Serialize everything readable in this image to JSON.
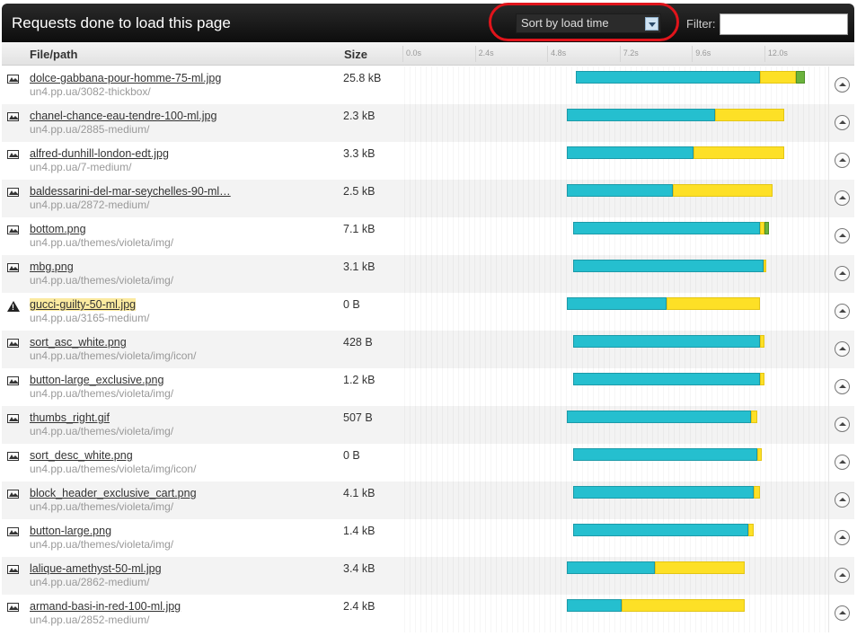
{
  "header": {
    "title": "Requests done to load this page",
    "sort_label": "Sort by load time",
    "filter_label": "Filter:",
    "filter_value": ""
  },
  "columns": {
    "file": "File/path",
    "size": "Size",
    "ticks": [
      "0.0s",
      "2.4s",
      "4.8s",
      "7.2s",
      "9.6s",
      "12.0s"
    ]
  },
  "timeline_max_seconds": 14.0,
  "colors": {
    "wait": "#25bfcf",
    "receive": "#fde026",
    "extra": "#6bb33c",
    "error_highlight": "#fbeaa0"
  },
  "rows": [
    {
      "name": "dolce-gabbana-pour-homme-75-ml.jpg",
      "path": "un4.pp.ua/3082-thickbox/",
      "size": "25.8 kB",
      "icon": "image-icon",
      "error": false,
      "segments": [
        {
          "t": "c",
          "s": 5.7,
          "e": 11.8
        },
        {
          "t": "y",
          "s": 11.8,
          "e": 13.0
        },
        {
          "t": "g",
          "s": 13.0,
          "e": 13.3
        }
      ]
    },
    {
      "name": "chanel-chance-eau-tendre-100-ml.jpg",
      "path": "un4.pp.ua/2885-medium/",
      "size": "2.3 kB",
      "icon": "image-icon",
      "error": false,
      "segments": [
        {
          "t": "c",
          "s": 5.4,
          "e": 10.3
        },
        {
          "t": "y",
          "s": 10.3,
          "e": 12.6
        }
      ]
    },
    {
      "name": "alfred-dunhill-london-edt.jpg",
      "path": "un4.pp.ua/7-medium/",
      "size": "3.3 kB",
      "icon": "image-icon",
      "error": false,
      "segments": [
        {
          "t": "c",
          "s": 5.4,
          "e": 9.6
        },
        {
          "t": "y",
          "s": 9.6,
          "e": 12.6
        }
      ]
    },
    {
      "name": "baldessarini-del-mar-seychelles-90-ml…",
      "path": "un4.pp.ua/2872-medium/",
      "size": "2.5 kB",
      "icon": "image-icon",
      "error": false,
      "segments": [
        {
          "t": "c",
          "s": 5.4,
          "e": 8.9
        },
        {
          "t": "y",
          "s": 8.9,
          "e": 12.2
        }
      ]
    },
    {
      "name": "bottom.png",
      "path": "un4.pp.ua/themes/violeta/img/",
      "size": "7.1 kB",
      "icon": "image-icon",
      "error": false,
      "segments": [
        {
          "t": "c",
          "s": 5.6,
          "e": 11.8
        },
        {
          "t": "y",
          "s": 11.8,
          "e": 11.95
        },
        {
          "t": "g",
          "s": 11.95,
          "e": 12.1
        }
      ]
    },
    {
      "name": "mbg.png",
      "path": "un4.pp.ua/themes/violeta/img/",
      "size": "3.1 kB",
      "icon": "image-icon",
      "error": false,
      "segments": [
        {
          "t": "c",
          "s": 5.6,
          "e": 11.9
        },
        {
          "t": "y",
          "s": 11.9,
          "e": 12.0
        }
      ]
    },
    {
      "name": "gucci-guilty-50-ml.jpg",
      "path": "un4.pp.ua/3165-medium/",
      "size": "0 B",
      "icon": "warning-icon",
      "error": true,
      "segments": [
        {
          "t": "c",
          "s": 5.4,
          "e": 8.7
        },
        {
          "t": "y",
          "s": 8.7,
          "e": 11.8
        }
      ]
    },
    {
      "name": "sort_asc_white.png",
      "path": "un4.pp.ua/themes/violeta/img/icon/",
      "size": "428 B",
      "icon": "image-icon",
      "error": false,
      "segments": [
        {
          "t": "c",
          "s": 5.6,
          "e": 11.8
        },
        {
          "t": "y",
          "s": 11.8,
          "e": 11.95
        }
      ]
    },
    {
      "name": "button-large_exclusive.png",
      "path": "un4.pp.ua/themes/violeta/img/",
      "size": "1.2 kB",
      "icon": "image-icon",
      "error": false,
      "segments": [
        {
          "t": "c",
          "s": 5.6,
          "e": 11.8
        },
        {
          "t": "y",
          "s": 11.8,
          "e": 11.95
        }
      ]
    },
    {
      "name": "thumbs_right.gif",
      "path": "un4.pp.ua/themes/violeta/img/",
      "size": "507 B",
      "icon": "image-icon",
      "error": false,
      "segments": [
        {
          "t": "c",
          "s": 5.4,
          "e": 11.5
        },
        {
          "t": "y",
          "s": 11.5,
          "e": 11.7
        }
      ]
    },
    {
      "name": "sort_desc_white.png",
      "path": "un4.pp.ua/themes/violeta/img/icon/",
      "size": "0 B",
      "icon": "image-icon",
      "error": false,
      "segments": [
        {
          "t": "c",
          "s": 5.6,
          "e": 11.7
        },
        {
          "t": "y",
          "s": 11.7,
          "e": 11.85
        }
      ]
    },
    {
      "name": "block_header_exclusive_cart.png",
      "path": "un4.pp.ua/themes/violeta/img/",
      "size": "4.1 kB",
      "icon": "image-icon",
      "error": false,
      "segments": [
        {
          "t": "c",
          "s": 5.6,
          "e": 11.6
        },
        {
          "t": "y",
          "s": 11.6,
          "e": 11.8
        }
      ]
    },
    {
      "name": "button-large.png",
      "path": "un4.pp.ua/themes/violeta/img/",
      "size": "1.4 kB",
      "icon": "image-icon",
      "error": false,
      "segments": [
        {
          "t": "c",
          "s": 5.6,
          "e": 11.4
        },
        {
          "t": "y",
          "s": 11.4,
          "e": 11.6
        }
      ]
    },
    {
      "name": "lalique-amethyst-50-ml.jpg",
      "path": "un4.pp.ua/2862-medium/",
      "size": "3.4 kB",
      "icon": "image-icon",
      "error": false,
      "segments": [
        {
          "t": "c",
          "s": 5.4,
          "e": 8.3
        },
        {
          "t": "y",
          "s": 8.3,
          "e": 11.3
        }
      ]
    },
    {
      "name": "armand-basi-in-red-100-ml.jpg",
      "path": "un4.pp.ua/2852-medium/",
      "size": "2.4 kB",
      "icon": "image-icon",
      "error": false,
      "segments": [
        {
          "t": "c",
          "s": 5.4,
          "e": 7.2
        },
        {
          "t": "y",
          "s": 7.2,
          "e": 11.3
        }
      ]
    }
  ]
}
